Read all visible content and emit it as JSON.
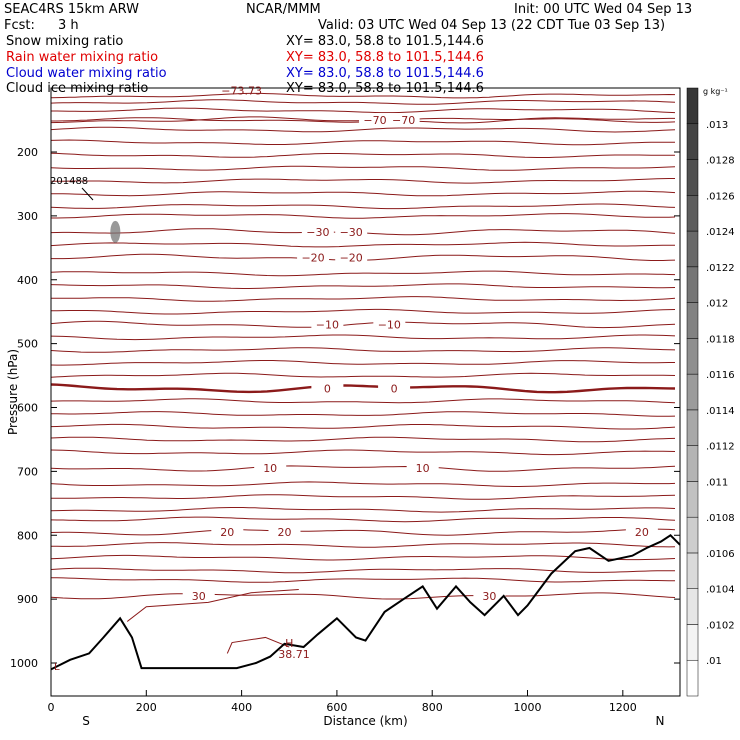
{
  "header": {
    "model": "SEAC4RS 15km ARW",
    "org": "NCAR/MMM",
    "init": "Init: 00 UTC Wed 04 Sep 13",
    "fcst_label": "Fcst:",
    "fcst_value": "3 h",
    "valid": "Valid: 03 UTC Wed 04 Sep 13 (22 CDT Tue 03 Sep 13)",
    "fields": [
      {
        "name": "Snow mixing ratio",
        "xy": "XY=  83.0, 58.8 to 101.5,144.6",
        "color": "#000000"
      },
      {
        "name": "Rain water mixing ratio",
        "xy": "XY=  83.0, 58.8 to 101.5,144.6",
        "color": "#e00000"
      },
      {
        "name": "Cloud water mixing ratio",
        "xy": "XY=  83.0, 58.8 to 101.5,144.6",
        "color": "#0000d0"
      },
      {
        "name": "Cloud ice mixing ratio",
        "xy": "XY=  83.0, 58.8 to 101.5,144.6",
        "color": "#000000"
      }
    ]
  },
  "chart_data": {
    "type": "contour cross-section",
    "xlabel": "Distance (km)",
    "ylabel": "Pressure (hPa)",
    "x_ticks": [
      0,
      200,
      400,
      600,
      800,
      1000,
      1200
    ],
    "xlim": [
      0,
      1320
    ],
    "y_ticks": [
      200,
      300,
      400,
      500,
      600,
      700,
      800,
      900,
      1000
    ],
    "ylim": [
      1050,
      100
    ],
    "x_end_labels": {
      "left": "S",
      "right": "N"
    },
    "colorbar": {
      "unit_label": "g kg⁻¹",
      "levels": [
        ".01",
        ".0102",
        ".0104",
        ".0106",
        ".0108",
        ".011",
        ".0112",
        ".0114",
        ".0116",
        ".0118",
        ".012",
        ".0122",
        ".0124",
        ".0126",
        ".0128",
        ".013"
      ]
    },
    "temperature_contours": [
      {
        "value": -70,
        "pressure": 150,
        "labels": [
          "−70",
          "−70"
        ],
        "label_x_km": [
          680,
          740
        ]
      },
      {
        "value": -30,
        "pressure": 325,
        "labels": [
          "−30",
          "−30"
        ],
        "label_x_km": [
          560,
          630
        ]
      },
      {
        "value": -20,
        "pressure": 365,
        "labels": [
          "−20",
          "−20"
        ],
        "label_x_km": [
          550,
          630
        ]
      },
      {
        "value": -10,
        "pressure": 470,
        "labels": [
          "−10",
          "−10"
        ],
        "label_x_km": [
          580,
          710
        ]
      },
      {
        "value": 0,
        "pressure": 570,
        "labels": [
          "0",
          "0"
        ],
        "label_x_km": [
          580,
          720
        ]
      },
      {
        "value": 10,
        "pressure": 695,
        "labels": [
          "10",
          "10"
        ],
        "label_x_km": [
          460,
          780
        ]
      },
      {
        "value": 20,
        "pressure": 795,
        "labels": [
          "20",
          "20",
          "20"
        ],
        "label_x_km": [
          370,
          490,
          1240
        ]
      },
      {
        "value": 30,
        "pressure": 895,
        "labels": [
          "30",
          "30"
        ],
        "label_x_km": [
          310,
          920
        ]
      }
    ],
    "annotations": {
      "min_label": "−73.73",
      "max_marker": "H",
      "max_label": "38.71",
      "low_label": "L",
      "station_label": "201488"
    },
    "terrain_km_hpa": [
      [
        0,
        1010
      ],
      [
        40,
        995
      ],
      [
        80,
        985
      ],
      [
        110,
        960
      ],
      [
        145,
        930
      ],
      [
        170,
        960
      ],
      [
        190,
        1008
      ],
      [
        390,
        1008
      ],
      [
        430,
        1000
      ],
      [
        460,
        990
      ],
      [
        490,
        970
      ],
      [
        530,
        975
      ],
      [
        560,
        955
      ],
      [
        600,
        930
      ],
      [
        640,
        960
      ],
      [
        660,
        965
      ],
      [
        700,
        920
      ],
      [
        740,
        900
      ],
      [
        780,
        880
      ],
      [
        810,
        915
      ],
      [
        850,
        880
      ],
      [
        880,
        905
      ],
      [
        910,
        925
      ],
      [
        950,
        895
      ],
      [
        980,
        925
      ],
      [
        1000,
        910
      ],
      [
        1050,
        860
      ],
      [
        1100,
        825
      ],
      [
        1130,
        820
      ],
      [
        1170,
        840
      ],
      [
        1220,
        832
      ],
      [
        1250,
        820
      ],
      [
        1280,
        810
      ],
      [
        1300,
        800
      ],
      [
        1320,
        815
      ]
    ]
  }
}
